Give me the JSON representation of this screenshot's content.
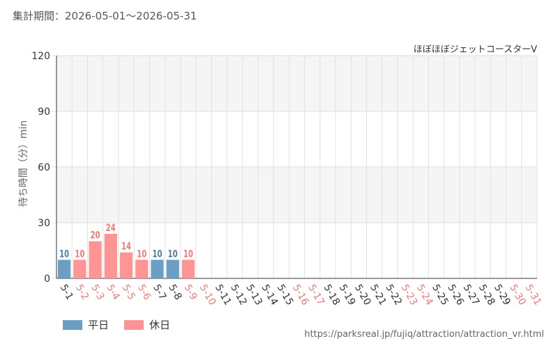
{
  "header": {
    "period": "集計期間：2026-05-01～2026-05-31"
  },
  "colors": {
    "weekday": "#6a9ec4",
    "holiday": "#ff9494",
    "weekday_text": "#4a7ca8",
    "holiday_text": "#f07777"
  },
  "legend": {
    "weekday_label": "平日",
    "holiday_label": "休日"
  },
  "footer": {
    "source": "https://parksreal.jp/fujiq/attraction/attraction_vr.html"
  },
  "chart_data": {
    "type": "bar",
    "title": "ほぼほぼジェットコースターV",
    "ylabel": "待ち時間（分）min",
    "ylim": [
      0,
      120
    ],
    "yticks": [
      0,
      30,
      60,
      90,
      120
    ],
    "grid": true,
    "legend_position": "bottom-left",
    "categories": [
      "5-1",
      "5-2",
      "5-3",
      "5-4",
      "5-5",
      "5-6",
      "5-7",
      "5-8",
      "5-9",
      "5-10",
      "5-11",
      "5-12",
      "5-13",
      "5-14",
      "5-15",
      "5-16",
      "5-17",
      "5-18",
      "5-19",
      "5-20",
      "5-21",
      "5-22",
      "5-23",
      "5-24",
      "5-25",
      "5-26",
      "5-27",
      "5-28",
      "5-29",
      "5-30",
      "5-31"
    ],
    "day_type": [
      "weekday",
      "holiday",
      "holiday",
      "holiday",
      "holiday",
      "holiday",
      "weekday",
      "weekday",
      "holiday",
      "holiday",
      "weekday",
      "weekday",
      "weekday",
      "weekday",
      "weekday",
      "holiday",
      "holiday",
      "weekday",
      "weekday",
      "weekday",
      "weekday",
      "weekday",
      "holiday",
      "holiday",
      "weekday",
      "weekday",
      "weekday",
      "weekday",
      "weekday",
      "holiday",
      "holiday"
    ],
    "values": [
      10,
      10,
      20,
      24,
      14,
      10,
      10,
      10,
      10,
      null,
      null,
      null,
      null,
      null,
      null,
      null,
      null,
      null,
      null,
      null,
      null,
      null,
      null,
      null,
      null,
      null,
      null,
      null,
      null,
      null,
      null
    ]
  }
}
